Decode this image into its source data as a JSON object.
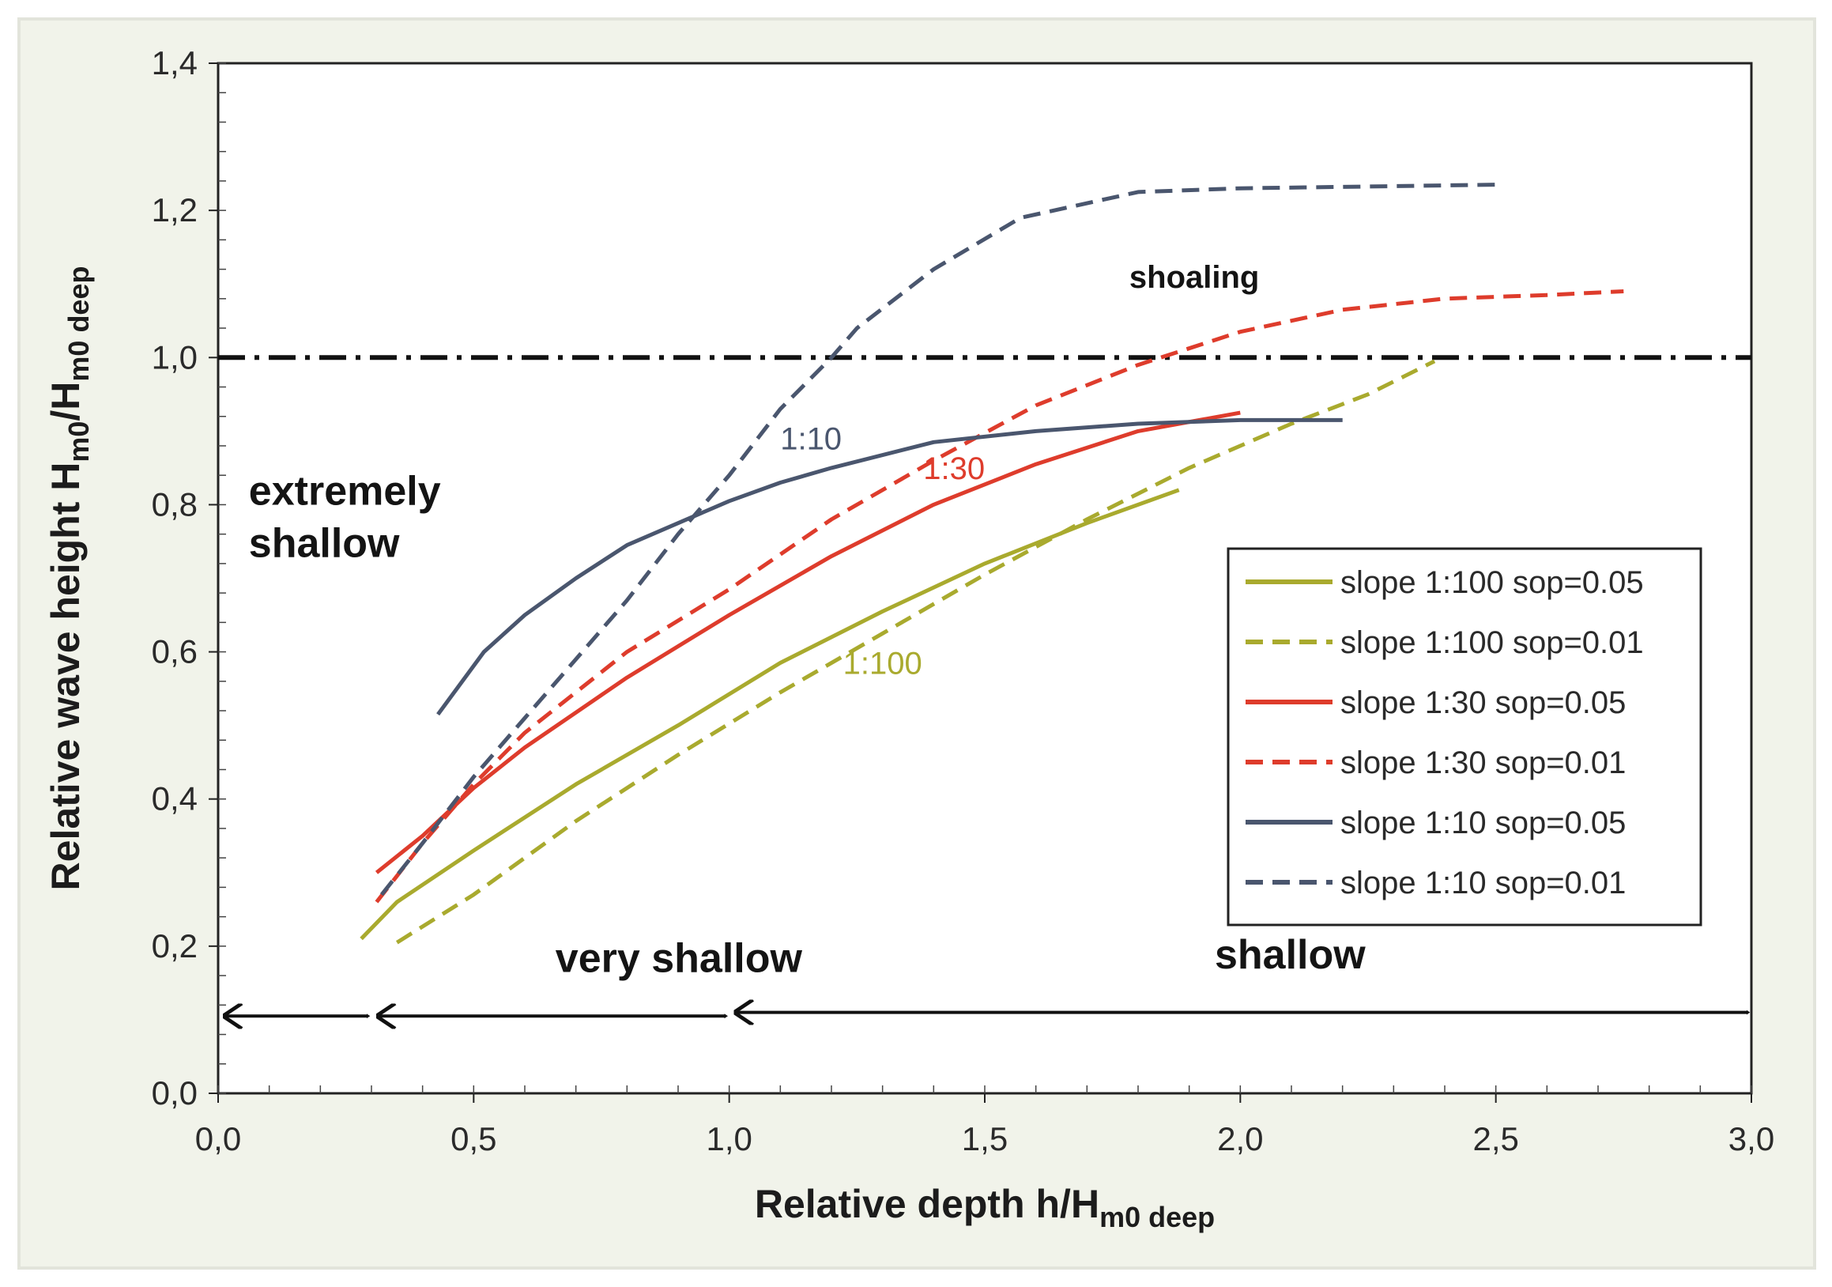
{
  "chart_data": {
    "type": "line",
    "xlabel": "Relative depth h/H",
    "xlabel_sub": "m0 deep",
    "ylabel": "Relative wave height H",
    "ylabel_sub1": "m0",
    "ylabel_mid": "/H",
    "ylabel_sub2": "m0 deep",
    "xlim": [
      0,
      3.0
    ],
    "ylim": [
      0,
      1.4
    ],
    "xticks": [
      0,
      0.5,
      1.0,
      1.5,
      2.0,
      2.5,
      3.0
    ],
    "xtick_labels": [
      "0,0",
      "0,5",
      "1,0",
      "1,5",
      "2,0",
      "2,5",
      "3,0"
    ],
    "yticks": [
      0,
      0.2,
      0.4,
      0.6,
      0.8,
      1.0,
      1.2,
      1.4
    ],
    "ytick_labels": [
      "0,0",
      "0,2",
      "0,4",
      "0,6",
      "0,8",
      "1,0",
      "1,2",
      "1,4"
    ],
    "reference_line": {
      "y": 1.0,
      "style": "dash-dot",
      "color": "#111111"
    },
    "series": [
      {
        "name": "slope 1:100 sop=0.05",
        "color": "#a9aa2e",
        "dash": false,
        "x": [
          0.28,
          0.35,
          0.5,
          0.7,
          0.9,
          1.1,
          1.3,
          1.5,
          1.7,
          1.88
        ],
        "y": [
          0.21,
          0.26,
          0.33,
          0.42,
          0.5,
          0.585,
          0.655,
          0.72,
          0.775,
          0.82
        ]
      },
      {
        "name": "slope 1:100 sop=0.01",
        "color": "#a9aa2e",
        "dash": true,
        "x": [
          0.35,
          0.5,
          0.7,
          0.9,
          1.1,
          1.3,
          1.5,
          1.7,
          1.9,
          2.1,
          2.25,
          2.38
        ],
        "y": [
          0.205,
          0.27,
          0.37,
          0.46,
          0.545,
          0.625,
          0.705,
          0.78,
          0.85,
          0.91,
          0.95,
          0.995
        ]
      },
      {
        "name": "slope 1:30 sop=0.05",
        "color": "#de3c2c",
        "dash": false,
        "x": [
          0.31,
          0.4,
          0.5,
          0.6,
          0.8,
          1.0,
          1.2,
          1.4,
          1.6,
          1.8,
          2.0
        ],
        "y": [
          0.3,
          0.35,
          0.415,
          0.47,
          0.565,
          0.65,
          0.73,
          0.8,
          0.855,
          0.9,
          0.925
        ]
      },
      {
        "name": "slope 1:30 sop=0.01",
        "color": "#de3c2c",
        "dash": true,
        "x": [
          0.31,
          0.4,
          0.5,
          0.6,
          0.8,
          1.0,
          1.2,
          1.4,
          1.6,
          1.8,
          2.0,
          2.2,
          2.4,
          2.6,
          2.75
        ],
        "y": [
          0.26,
          0.34,
          0.42,
          0.49,
          0.6,
          0.685,
          0.78,
          0.86,
          0.935,
          0.99,
          1.035,
          1.065,
          1.08,
          1.085,
          1.09
        ]
      },
      {
        "name": "slope 1:10 sop=0.05",
        "color": "#4a566e",
        "dash": false,
        "x": [
          0.43,
          0.52,
          0.6,
          0.7,
          0.8,
          0.9,
          1.0,
          1.1,
          1.2,
          1.4,
          1.6,
          1.8,
          2.0,
          2.2
        ],
        "y": [
          0.515,
          0.6,
          0.65,
          0.7,
          0.745,
          0.775,
          0.805,
          0.83,
          0.85,
          0.885,
          0.9,
          0.91,
          0.915,
          0.915
        ]
      },
      {
        "name": "slope 1:10 sop=0.01",
        "color": "#4a566e",
        "dash": true,
        "x": [
          0.32,
          0.4,
          0.5,
          0.6,
          0.7,
          0.8,
          0.9,
          1.0,
          1.1,
          1.2,
          1.25,
          1.4,
          1.57,
          1.8,
          2.0,
          2.2,
          2.5
        ],
        "y": [
          0.27,
          0.34,
          0.43,
          0.51,
          0.59,
          0.67,
          0.76,
          0.84,
          0.93,
          1.0,
          1.04,
          1.12,
          1.19,
          1.225,
          1.23,
          1.232,
          1.235
        ]
      }
    ],
    "legend_position": "center-right",
    "annotations": [
      {
        "text": "shoaling",
        "x": 1.91,
        "y": 1.095,
        "color": "#141414",
        "style": "region-small"
      },
      {
        "text": "1:10",
        "x": 1.16,
        "y": 0.875,
        "color": "#4a566e",
        "style": "label"
      },
      {
        "text": "1:30",
        "x": 1.44,
        "y": 0.835,
        "color": "#de3c2c",
        "style": "label"
      },
      {
        "text": "1:100",
        "x": 1.3,
        "y": 0.57,
        "color": "#a9aa2e",
        "style": "label"
      }
    ],
    "regions": [
      {
        "lines": [
          "extremely",
          "shallow"
        ],
        "x": 0.06,
        "y": 0.8
      },
      {
        "lines": [
          "very shallow"
        ],
        "x": 0.66,
        "y": 0.165
      },
      {
        "lines": [
          "shallow"
        ],
        "x": 1.95,
        "y": 0.17
      }
    ],
    "region_arrows": [
      {
        "from": 0.0,
        "to": 0.3,
        "y": 0.105
      },
      {
        "from": 0.3,
        "to": 1.0,
        "y": 0.105
      },
      {
        "from": 1.0,
        "to": 3.0,
        "y": 0.11
      }
    ]
  }
}
